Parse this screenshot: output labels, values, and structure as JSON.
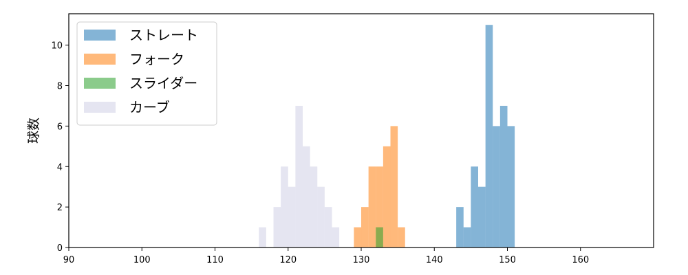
{
  "chart_data": {
    "type": "bar",
    "title": "",
    "xlabel": "",
    "ylabel": "球数",
    "xlim": [
      90,
      170
    ],
    "ylim": [
      0,
      11.55
    ],
    "xticks": [
      90,
      100,
      110,
      120,
      130,
      140,
      150,
      160
    ],
    "yticks": [
      0,
      2,
      4,
      6,
      8,
      10
    ],
    "grid": false,
    "legend": "top-left",
    "bin_width": 1,
    "series": [
      {
        "name": "ストレート",
        "color": "#1f77b4",
        "bins": [
          {
            "x": 143,
            "count": 2
          },
          {
            "x": 144,
            "count": 1
          },
          {
            "x": 145,
            "count": 4
          },
          {
            "x": 146,
            "count": 3
          },
          {
            "x": 147,
            "count": 11
          },
          {
            "x": 148,
            "count": 6
          },
          {
            "x": 149,
            "count": 7
          },
          {
            "x": 150,
            "count": 6
          }
        ]
      },
      {
        "name": "フォーク",
        "color": "#ff7f0e",
        "bins": [
          {
            "x": 129,
            "count": 1
          },
          {
            "x": 130,
            "count": 2
          },
          {
            "x": 131,
            "count": 4
          },
          {
            "x": 132,
            "count": 4
          },
          {
            "x": 133,
            "count": 5
          },
          {
            "x": 134,
            "count": 6
          },
          {
            "x": 135,
            "count": 1
          }
        ]
      },
      {
        "name": "スライダー",
        "color": "#2ca02c",
        "bins": [
          {
            "x": 132,
            "count": 1
          }
        ]
      },
      {
        "name": "カーブ",
        "color": "#d0d0e6",
        "bins": [
          {
            "x": 116,
            "count": 1
          },
          {
            "x": 118,
            "count": 2
          },
          {
            "x": 119,
            "count": 4
          },
          {
            "x": 120,
            "count": 3
          },
          {
            "x": 121,
            "count": 7
          },
          {
            "x": 122,
            "count": 5
          },
          {
            "x": 123,
            "count": 4
          },
          {
            "x": 124,
            "count": 3
          },
          {
            "x": 125,
            "count": 2
          },
          {
            "x": 126,
            "count": 1
          }
        ]
      }
    ]
  }
}
